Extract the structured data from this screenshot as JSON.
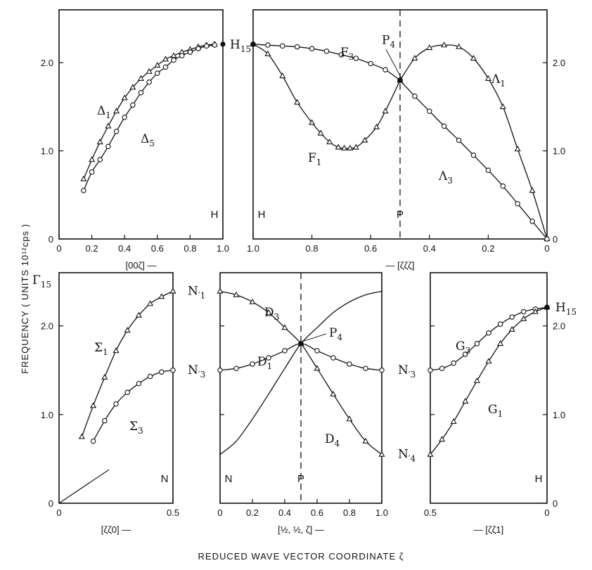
{
  "figure": {
    "ylabel": "FREQUENCY   ( UNITS  10¹²cps )",
    "xlabel": "REDUCED  WAVE  VECTOR  COORDINATE  ζ"
  },
  "chart_data": [
    {
      "type": "line",
      "id": "p1",
      "xlabel": "[00ζ] —",
      "xlim": [
        0,
        1.0
      ],
      "ylim": [
        0,
        2.6
      ],
      "xticks": [
        "0",
        "0.2",
        "0.4",
        "0.6",
        "0.8",
        "1.0"
      ],
      "yticks": [
        "0",
        "1.0",
        "2.0"
      ],
      "point_labels": [
        "H"
      ],
      "series": [
        {
          "name": "Δ1",
          "marker": "triangle",
          "x": [
            0.15,
            0.2,
            0.25,
            0.3,
            0.35,
            0.4,
            0.45,
            0.5,
            0.55,
            0.6,
            0.65,
            0.7,
            0.75,
            0.8,
            0.85,
            0.9,
            0.95
          ],
          "y": [
            0.68,
            0.9,
            1.1,
            1.28,
            1.45,
            1.6,
            1.72,
            1.82,
            1.9,
            1.97,
            2.04,
            2.08,
            2.12,
            2.15,
            2.18,
            2.2,
            2.21
          ]
        },
        {
          "name": "Δ5",
          "marker": "circle",
          "x": [
            0.15,
            0.2,
            0.25,
            0.3,
            0.35,
            0.4,
            0.45,
            0.5,
            0.55,
            0.6,
            0.65,
            0.7,
            0.75,
            0.8,
            0.85,
            0.9,
            0.95
          ],
          "y": [
            0.55,
            0.76,
            0.9,
            1.05,
            1.22,
            1.38,
            1.52,
            1.66,
            1.78,
            1.88,
            1.95,
            2.03,
            2.08,
            2.12,
            2.16,
            2.19,
            2.2
          ]
        }
      ],
      "end_point": {
        "label": "H15",
        "x": 1.0,
        "y": 2.21
      }
    },
    {
      "type": "line",
      "id": "p2",
      "xlabel": "— [ζζζ]",
      "xlim": [
        1.0,
        0
      ],
      "ylim": [
        0,
        2.6
      ],
      "xticks": [
        "1.0",
        "0.8",
        "0.6",
        "0.4",
        "0.2",
        "0"
      ],
      "yticks_right": [
        "0",
        "1.0",
        "2.0"
      ],
      "point_labels": [
        "H",
        "P"
      ],
      "series": [
        {
          "name": "F3",
          "marker": "circle",
          "x": [
            1.0,
            0.95,
            0.9,
            0.85,
            0.8,
            0.75,
            0.7,
            0.65,
            0.6,
            0.55,
            0.5
          ],
          "y": [
            2.21,
            2.2,
            2.19,
            2.18,
            2.16,
            2.13,
            2.09,
            2.05,
            1.99,
            1.92,
            1.8
          ]
        },
        {
          "name": "F1",
          "marker": "triangle",
          "x": [
            1.0,
            0.95,
            0.9,
            0.85,
            0.8,
            0.77,
            0.74,
            0.71,
            0.69,
            0.67,
            0.65,
            0.62,
            0.58,
            0.55,
            0.5
          ],
          "y": [
            2.21,
            2.1,
            1.85,
            1.55,
            1.32,
            1.2,
            1.1,
            1.04,
            1.03,
            1.03,
            1.04,
            1.12,
            1.27,
            1.45,
            1.8
          ]
        },
        {
          "name": "Λ1",
          "marker": "triangle",
          "x": [
            0.5,
            0.45,
            0.4,
            0.35,
            0.3,
            0.25,
            0.2,
            0.15,
            0.1,
            0.05,
            0
          ],
          "y": [
            1.8,
            2.05,
            2.17,
            2.2,
            2.18,
            2.05,
            1.82,
            1.5,
            1.02,
            0.55,
            0
          ]
        },
        {
          "name": "Λ3",
          "marker": "circle",
          "x": [
            0.5,
            0.45,
            0.4,
            0.35,
            0.3,
            0.25,
            0.2,
            0.15,
            0.1,
            0.05,
            0
          ],
          "y": [
            1.8,
            1.62,
            1.45,
            1.28,
            1.12,
            0.95,
            0.78,
            0.6,
            0.4,
            0.2,
            0
          ]
        }
      ],
      "point_annotation": {
        "label": "P4",
        "x": 0.5,
        "y": 1.8
      }
    },
    {
      "type": "line",
      "id": "p3",
      "xlabel": "[ζζ0] —",
      "xlim": [
        0,
        0.5
      ],
      "ylim": [
        0,
        2.6
      ],
      "xticks": [
        "0",
        "0.5"
      ],
      "yticks": [
        "0",
        "1.0",
        "2.0"
      ],
      "point_labels": [
        "N"
      ],
      "series": [
        {
          "name": "Σ1",
          "marker": "triangle",
          "x": [
            0.1,
            0.15,
            0.2,
            0.25,
            0.3,
            0.35,
            0.4,
            0.45,
            0.5
          ],
          "y": [
            0.75,
            1.1,
            1.42,
            1.72,
            1.95,
            2.12,
            2.25,
            2.33,
            2.39
          ]
        },
        {
          "name": "Σ3",
          "marker": "circle",
          "x": [
            0.15,
            0.2,
            0.25,
            0.3,
            0.35,
            0.4,
            0.45,
            0.5
          ],
          "y": [
            0.7,
            0.93,
            1.12,
            1.25,
            1.35,
            1.43,
            1.48,
            1.5
          ]
        }
      ],
      "line_segment": {
        "x": [
          0,
          0.22
        ],
        "y": [
          0,
          0.38
        ]
      }
    },
    {
      "type": "line",
      "id": "p4",
      "xlabel": "[½, ½, ζ] —",
      "xlim": [
        0,
        1.0
      ],
      "ylim": [
        0,
        2.6
      ],
      "xticks": [
        "0",
        "0.2",
        "0.4",
        "0.6",
        "0.8",
        "1.0"
      ],
      "point_labels": [
        "N",
        "P"
      ],
      "left_labels": [
        {
          "label": "N′1",
          "y": 2.39
        },
        {
          "label": "N′3",
          "y": 1.5
        }
      ],
      "series": [
        {
          "name": "D3",
          "marker": "triangle",
          "x": [
            0,
            0.1,
            0.2,
            0.3,
            0.4,
            0.5,
            0.6,
            0.7,
            0.8,
            0.9,
            1.0
          ],
          "y": [
            2.39,
            2.35,
            2.27,
            2.15,
            1.98,
            1.8,
            1.52,
            1.23,
            0.95,
            0.7,
            0.55
          ]
        },
        {
          "name": "D1",
          "marker": "circle",
          "x": [
            0,
            0.1,
            0.2,
            0.3,
            0.4,
            0.5,
            0.6,
            0.7,
            0.8,
            0.9,
            1.0
          ],
          "y": [
            1.5,
            1.52,
            1.57,
            1.64,
            1.72,
            1.8,
            1.72,
            1.64,
            1.57,
            1.52,
            1.5
          ]
        },
        {
          "name": "D4",
          "marker": "none",
          "x": [
            0,
            0.1,
            0.2,
            0.3,
            0.4,
            0.5,
            0.6,
            0.7,
            0.8,
            0.9,
            1.0
          ],
          "y": [
            0.55,
            0.7,
            0.95,
            1.23,
            1.52,
            1.8,
            1.98,
            2.15,
            2.27,
            2.35,
            2.39
          ]
        }
      ],
      "point_annotation": {
        "label": "P4",
        "x": 0.5,
        "y": 1.8
      }
    },
    {
      "type": "line",
      "id": "p5",
      "xlabel": "— [ζζ1]",
      "xlim": [
        0.5,
        0
      ],
      "ylim": [
        0,
        2.6
      ],
      "xticks": [
        "0.5",
        "0"
      ],
      "yticks_right": [
        "0",
        "1.0",
        "2.0"
      ],
      "point_labels": [
        "H"
      ],
      "left_labels": [
        {
          "label": "N′3",
          "y": 1.5
        },
        {
          "label": "N′4",
          "y": 0.55
        }
      ],
      "series": [
        {
          "name": "G3",
          "marker": "circle",
          "x": [
            0.5,
            0.45,
            0.4,
            0.35,
            0.3,
            0.25,
            0.2,
            0.15,
            0.1,
            0.05,
            0
          ],
          "y": [
            1.5,
            1.52,
            1.58,
            1.68,
            1.8,
            1.92,
            2.02,
            2.1,
            2.16,
            2.19,
            2.21
          ]
        },
        {
          "name": "G1",
          "marker": "triangle",
          "x": [
            0.5,
            0.45,
            0.4,
            0.35,
            0.3,
            0.25,
            0.2,
            0.15,
            0.1,
            0.05,
            0
          ],
          "y": [
            0.55,
            0.72,
            0.92,
            1.15,
            1.38,
            1.6,
            1.8,
            1.96,
            2.08,
            2.16,
            2.21
          ]
        }
      ],
      "end_point": {
        "label": "H15",
        "x": 0,
        "y": 2.21
      }
    }
  ]
}
